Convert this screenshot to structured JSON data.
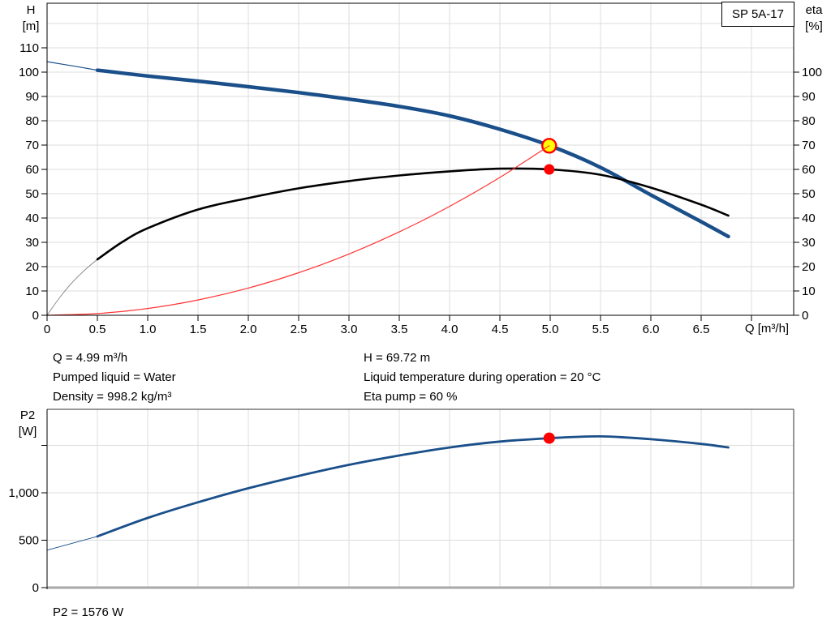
{
  "top_chart": {
    "model": "SP 5A-17",
    "y_axis_title_line1": "H",
    "y_axis_title_line2": "[m]",
    "y2_axis_title_line1": "eta",
    "y2_axis_title_line2": "[%]",
    "x_axis_title": "Q [m³/h]"
  },
  "info": {
    "q": "Q = 4.99 m³/h",
    "pumped_liquid": "Pumped liquid = Water",
    "density": "Density = 998.2 kg/m³",
    "h": "H = 69.72 m",
    "temperature": "Liquid temperature during operation = 20 °C",
    "eta_pump": "Eta pump = 60 %"
  },
  "bottom_chart": {
    "y_axis_title_line1": "P2",
    "y_axis_title_line2": "[W]",
    "result": "P2 = 1576 W"
  },
  "colors": {
    "curve_blue": "#1a4f8a",
    "curve_black": "#000000",
    "curve_gray_lead": "#8f8f8f",
    "system_red": "#ff3333",
    "marker_red": "#ff0000",
    "duty_yellow": "#ffff00",
    "grid": "#dcdcdc",
    "axis": "#000000",
    "frame_dark": "#333333",
    "frame_gray": "#a8a8a8",
    "background": "#ffffff"
  },
  "chart_data": [
    {
      "type": "line",
      "title": "SP 5A-17",
      "xlabel": "Q [m³/h]",
      "ylabel": "H [m]",
      "y2label": "eta [%]",
      "xlim": [
        0,
        7.42
      ],
      "ylim": [
        0,
        128.3
      ],
      "y2lim": [
        0,
        128.3
      ],
      "grid": true,
      "x_ticks": {
        "values": [
          0,
          0.5,
          1,
          1.5,
          2,
          2.5,
          3,
          3.5,
          4,
          4.5,
          5,
          5.5,
          6,
          6.5,
          7
        ],
        "labels": [
          "0",
          "0.5",
          "1.0",
          "1.5",
          "2.0",
          "2.5",
          "3.0",
          "3.5",
          "4.0",
          "4.5",
          "5.0",
          "5.5",
          "6.0",
          "6.5",
          ""
        ]
      },
      "y_ticks": {
        "values": [
          0,
          10,
          20,
          30,
          40,
          50,
          60,
          70,
          80,
          90,
          100,
          110
        ],
        "labels": [
          "0",
          "10",
          "20",
          "30",
          "40",
          "50",
          "60",
          "70",
          "80",
          "90",
          "100",
          "110"
        ]
      },
      "y2_ticks": {
        "values": [
          0,
          10,
          20,
          30,
          40,
          50,
          60,
          70,
          80,
          90,
          100
        ],
        "labels": [
          "0",
          "10",
          "20",
          "30",
          "40",
          "50",
          "60",
          "70",
          "80",
          "90",
          "100"
        ]
      },
      "grid_x": [
        0.5,
        1,
        1.5,
        2,
        2.5,
        3,
        3.5,
        4,
        4.5,
        5,
        5.5,
        6,
        6.5,
        7
      ],
      "grid_y": [
        10,
        20,
        30,
        40,
        50,
        60,
        70,
        80,
        90,
        100,
        110,
        120
      ],
      "series": [
        {
          "name": "head-curve-lead",
          "layer": "below",
          "color": "#1a4f8a",
          "width": 1.2,
          "points": [
            [
              0,
              104.3
            ],
            [
              0.25,
              102.6
            ],
            [
              0.5,
              100.8
            ]
          ]
        },
        {
          "name": "head-curve",
          "layer": "below",
          "color": "#1a4f8a",
          "width": 4.5,
          "points": [
            [
              0.5,
              100.8
            ],
            [
              1,
              98.4
            ],
            [
              1.5,
              96.3
            ],
            [
              2,
              94.0
            ],
            [
              2.5,
              91.6
            ],
            [
              3,
              88.9
            ],
            [
              3.5,
              85.9
            ],
            [
              4,
              82.0
            ],
            [
              4.5,
              76.5
            ],
            [
              5,
              69.7
            ],
            [
              5.5,
              60.8
            ],
            [
              6,
              49.5
            ],
            [
              6.5,
              38.5
            ],
            [
              6.77,
              32.4
            ]
          ]
        },
        {
          "name": "efficiency-curve-lead",
          "layer": "below",
          "color": "#8f8f8f",
          "width": 1,
          "points": [
            [
              0,
              0
            ],
            [
              0.12,
              7
            ],
            [
              0.25,
              13.5
            ],
            [
              0.38,
              18.8
            ],
            [
              0.5,
              23
            ]
          ]
        },
        {
          "name": "efficiency-curve",
          "layer": "below",
          "color": "#000000",
          "width": 2.6,
          "points": [
            [
              0.5,
              23
            ],
            [
              0.75,
              30.2
            ],
            [
              1,
              35.8
            ],
            [
              1.5,
              43.5
            ],
            [
              2,
              48.2
            ],
            [
              2.5,
              52.2
            ],
            [
              3,
              55.2
            ],
            [
              3.5,
              57.5
            ],
            [
              4,
              59.2
            ],
            [
              4.5,
              60.3
            ],
            [
              5,
              60.0
            ],
            [
              5.5,
              57.8
            ],
            [
              6,
              52.5
            ],
            [
              6.5,
              45.5
            ],
            [
              6.77,
              41.0
            ]
          ]
        },
        {
          "name": "system-curve",
          "layer": "above",
          "color": "#ff3333",
          "width": 1.2,
          "points": [
            [
              0,
              0
            ],
            [
              0.5,
              0.7
            ],
            [
              1,
              2.8
            ],
            [
              1.5,
              6.3
            ],
            [
              2,
              11.2
            ],
            [
              2.5,
              17.5
            ],
            [
              3,
              25.2
            ],
            [
              3.5,
              34.3
            ],
            [
              4,
              44.8
            ],
            [
              4.5,
              56.7
            ],
            [
              4.99,
              69.72
            ]
          ]
        }
      ],
      "markers": [
        {
          "name": "duty-point",
          "x": 4.99,
          "y": 69.72,
          "r": 8.5,
          "fill": "#ffff00",
          "stroke": "#ff0000",
          "stroke_width": 2.4
        },
        {
          "name": "efficiency-point",
          "x": 4.99,
          "y": 60,
          "r": 6.5,
          "fill": "#ff0000",
          "stroke": "none",
          "stroke_width": 0
        }
      ]
    },
    {
      "type": "line",
      "title": "P2 power curve",
      "xlabel": "",
      "ylabel": "P2 [W]",
      "xlim": [
        0,
        7.42
      ],
      "ylim": [
        0,
        1880
      ],
      "grid": true,
      "y_ticks": {
        "values": [
          0,
          500,
          1000,
          1500
        ],
        "labels": [
          "0",
          "500",
          "1,000",
          ""
        ]
      },
      "grid_x": [
        0.5,
        1,
        1.5,
        2,
        2.5,
        3,
        3.5,
        4,
        4.5,
        5,
        5.5,
        6,
        6.5,
        7
      ],
      "grid_y": [
        500,
        1000,
        1500
      ],
      "series": [
        {
          "name": "p2-curve-lead",
          "layer": "below",
          "color": "#1a4f8a",
          "width": 1,
          "points": [
            [
              0,
              395
            ],
            [
              0.5,
              540
            ]
          ]
        },
        {
          "name": "p2-curve",
          "layer": "below",
          "color": "#1a4f8a",
          "width": 2.8,
          "points": [
            [
              0.5,
              540
            ],
            [
              1,
              735
            ],
            [
              1.5,
              900
            ],
            [
              2,
              1048
            ],
            [
              2.5,
              1178
            ],
            [
              3,
              1295
            ],
            [
              3.5,
              1393
            ],
            [
              4,
              1478
            ],
            [
              4.5,
              1540
            ],
            [
              5,
              1576
            ],
            [
              5.5,
              1595
            ],
            [
              6,
              1565
            ],
            [
              6.5,
              1515
            ],
            [
              6.77,
              1478
            ]
          ]
        }
      ],
      "markers": [
        {
          "name": "p2-point",
          "x": 4.99,
          "y": 1576,
          "r": 7,
          "fill": "#ff0000",
          "stroke": "none",
          "stroke_width": 0
        }
      ]
    }
  ]
}
